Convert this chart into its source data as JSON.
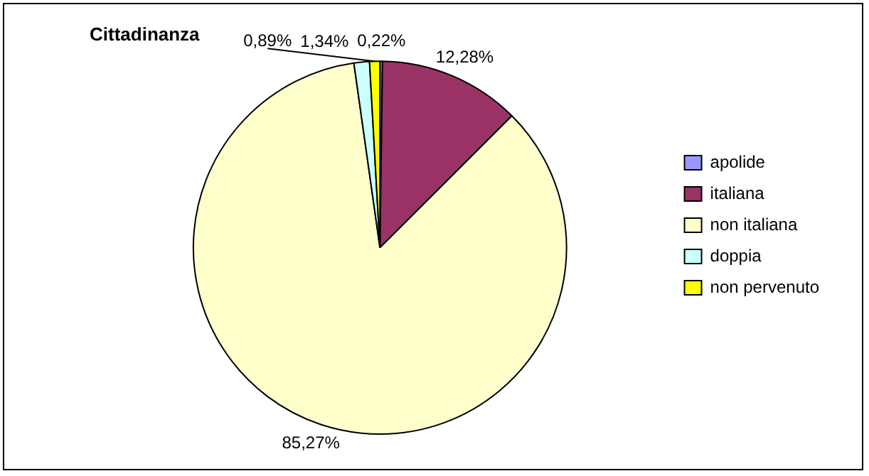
{
  "chart_data": {
    "type": "pie",
    "title": "Cittadinanza",
    "categories": [
      "apolide",
      "italiana",
      "non italiana",
      "doppia",
      "non pervenuto"
    ],
    "values": [
      0.22,
      12.28,
      85.27,
      1.34,
      0.89
    ],
    "colors": [
      "#9999ff",
      "#993366",
      "#ffffcc",
      "#ccffff",
      "#ffff00"
    ],
    "value_labels": [
      "0,22%",
      "12,28%",
      "85,27%",
      "1,34%",
      "0,89%"
    ],
    "legend": "right"
  }
}
